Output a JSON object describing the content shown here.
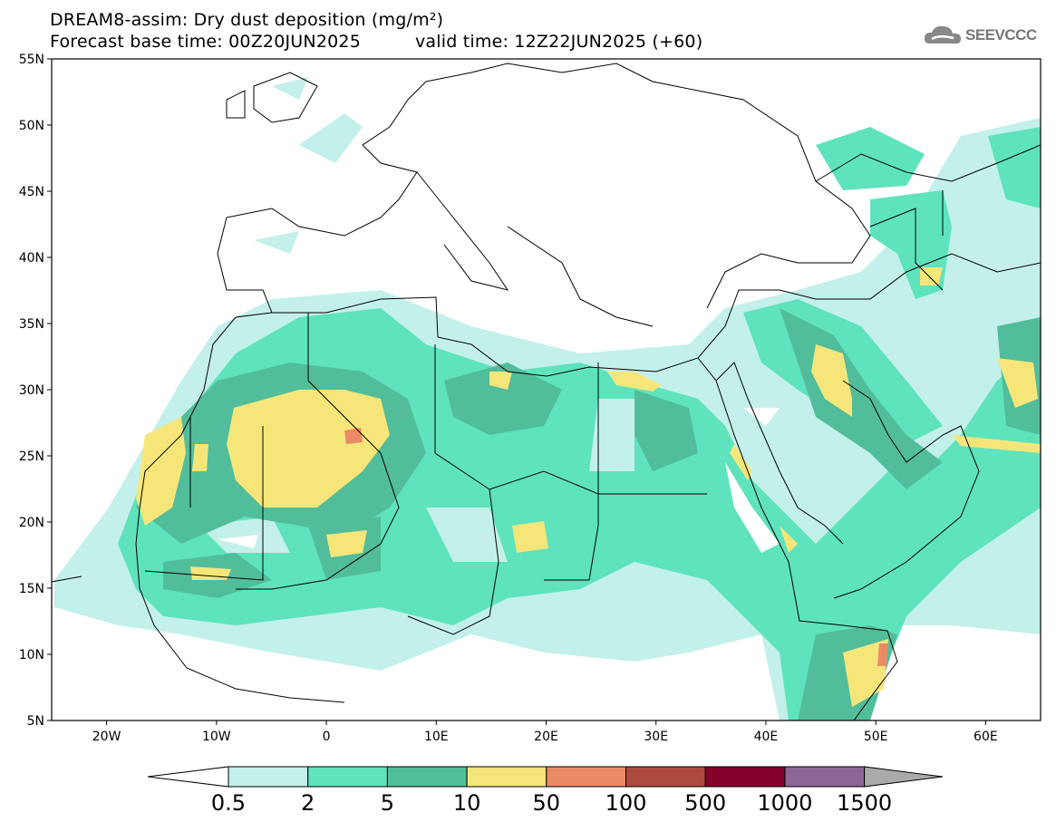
{
  "header": {
    "title": "DREAM8-assim: Dry dust deposition (mg/m²)",
    "base_time": "Forecast base time: 00Z20JUN2025",
    "valid_time": "valid time: 12Z22JUN2025 (+60)"
  },
  "logo": {
    "text": "SEEVCCC",
    "icon": "cloud-icon"
  },
  "map": {
    "lat_labels": [
      "55N",
      "50N",
      "45N",
      "40N",
      "35N",
      "30N",
      "25N",
      "20N",
      "15N",
      "10N",
      "5N"
    ],
    "lon_labels": [
      "20W",
      "10W",
      "0",
      "10E",
      "20E",
      "30E",
      "40E",
      "50E",
      "60E"
    ],
    "lat_range": [
      5,
      55
    ],
    "lon_range": [
      -25,
      65
    ]
  },
  "colorbar": {
    "labels": [
      "0.5",
      "2",
      "5",
      "10",
      "50",
      "100",
      "500",
      "1000",
      "1500"
    ],
    "colors": [
      "#c3f0ea",
      "#5ee3bd",
      "#52bd9b",
      "#f6e67a",
      "#eb8a67",
      "#ad4a40",
      "#85002a",
      "#8c6697"
    ],
    "under_color": "#ffffff",
    "over_color": "#aaaaaa"
  }
}
